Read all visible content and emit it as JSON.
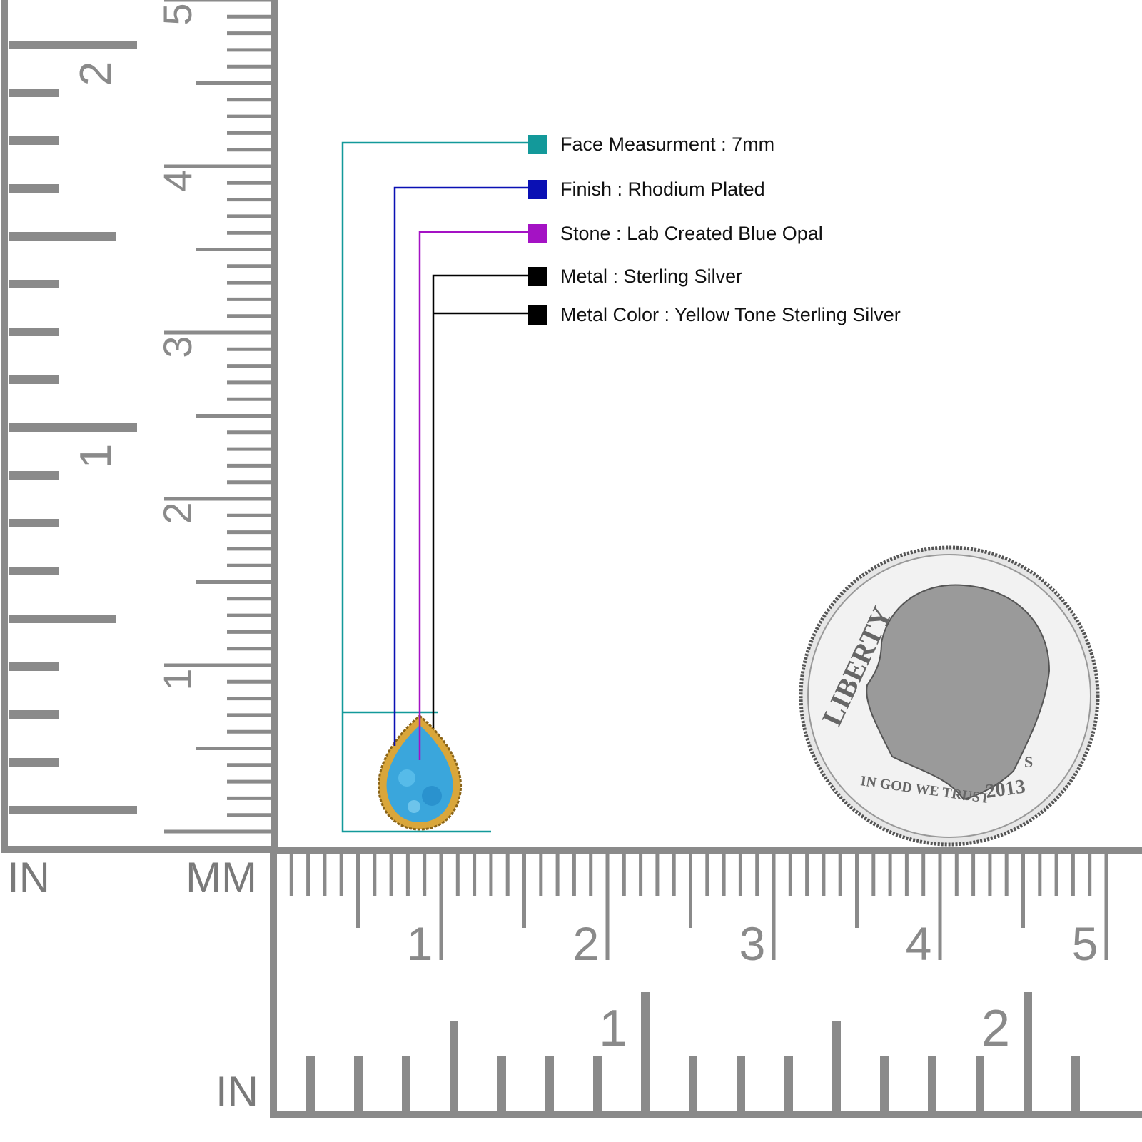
{
  "legend": [
    {
      "label": "Face Measurment : 7mm",
      "color": "#13999a"
    },
    {
      "label": "Finish : Rhodium Plated",
      "color": "#0a10b4"
    },
    {
      "label": "Stone : Lab Created Blue Opal",
      "color": "#a412c4"
    },
    {
      "label": "Metal : Sterling Silver",
      "color": "#000000"
    },
    {
      "label": "Metal Color : Yellow Tone Sterling Silver",
      "color": "#000000"
    }
  ],
  "rulers": {
    "left_unit_label": "IN",
    "mm_unit_label": "MM",
    "bottom_unit_label": "IN",
    "left_inch_labels": [
      "1",
      "2"
    ],
    "left_cm_labels": [
      "1",
      "2",
      "3",
      "4",
      "5"
    ],
    "bottom_cm_labels": [
      "1",
      "2",
      "3",
      "4",
      "5"
    ],
    "bottom_inch_labels": [
      "1",
      "2"
    ],
    "color": "#8a8a8a"
  },
  "coin": {
    "legend_text": "LIBERTY",
    "motto": "IN GOD WE TRUST",
    "year": "2013",
    "mint_mark": "S"
  },
  "product": {
    "stone_color": "#3aa6dc",
    "metal_color": "#d9a63a"
  }
}
